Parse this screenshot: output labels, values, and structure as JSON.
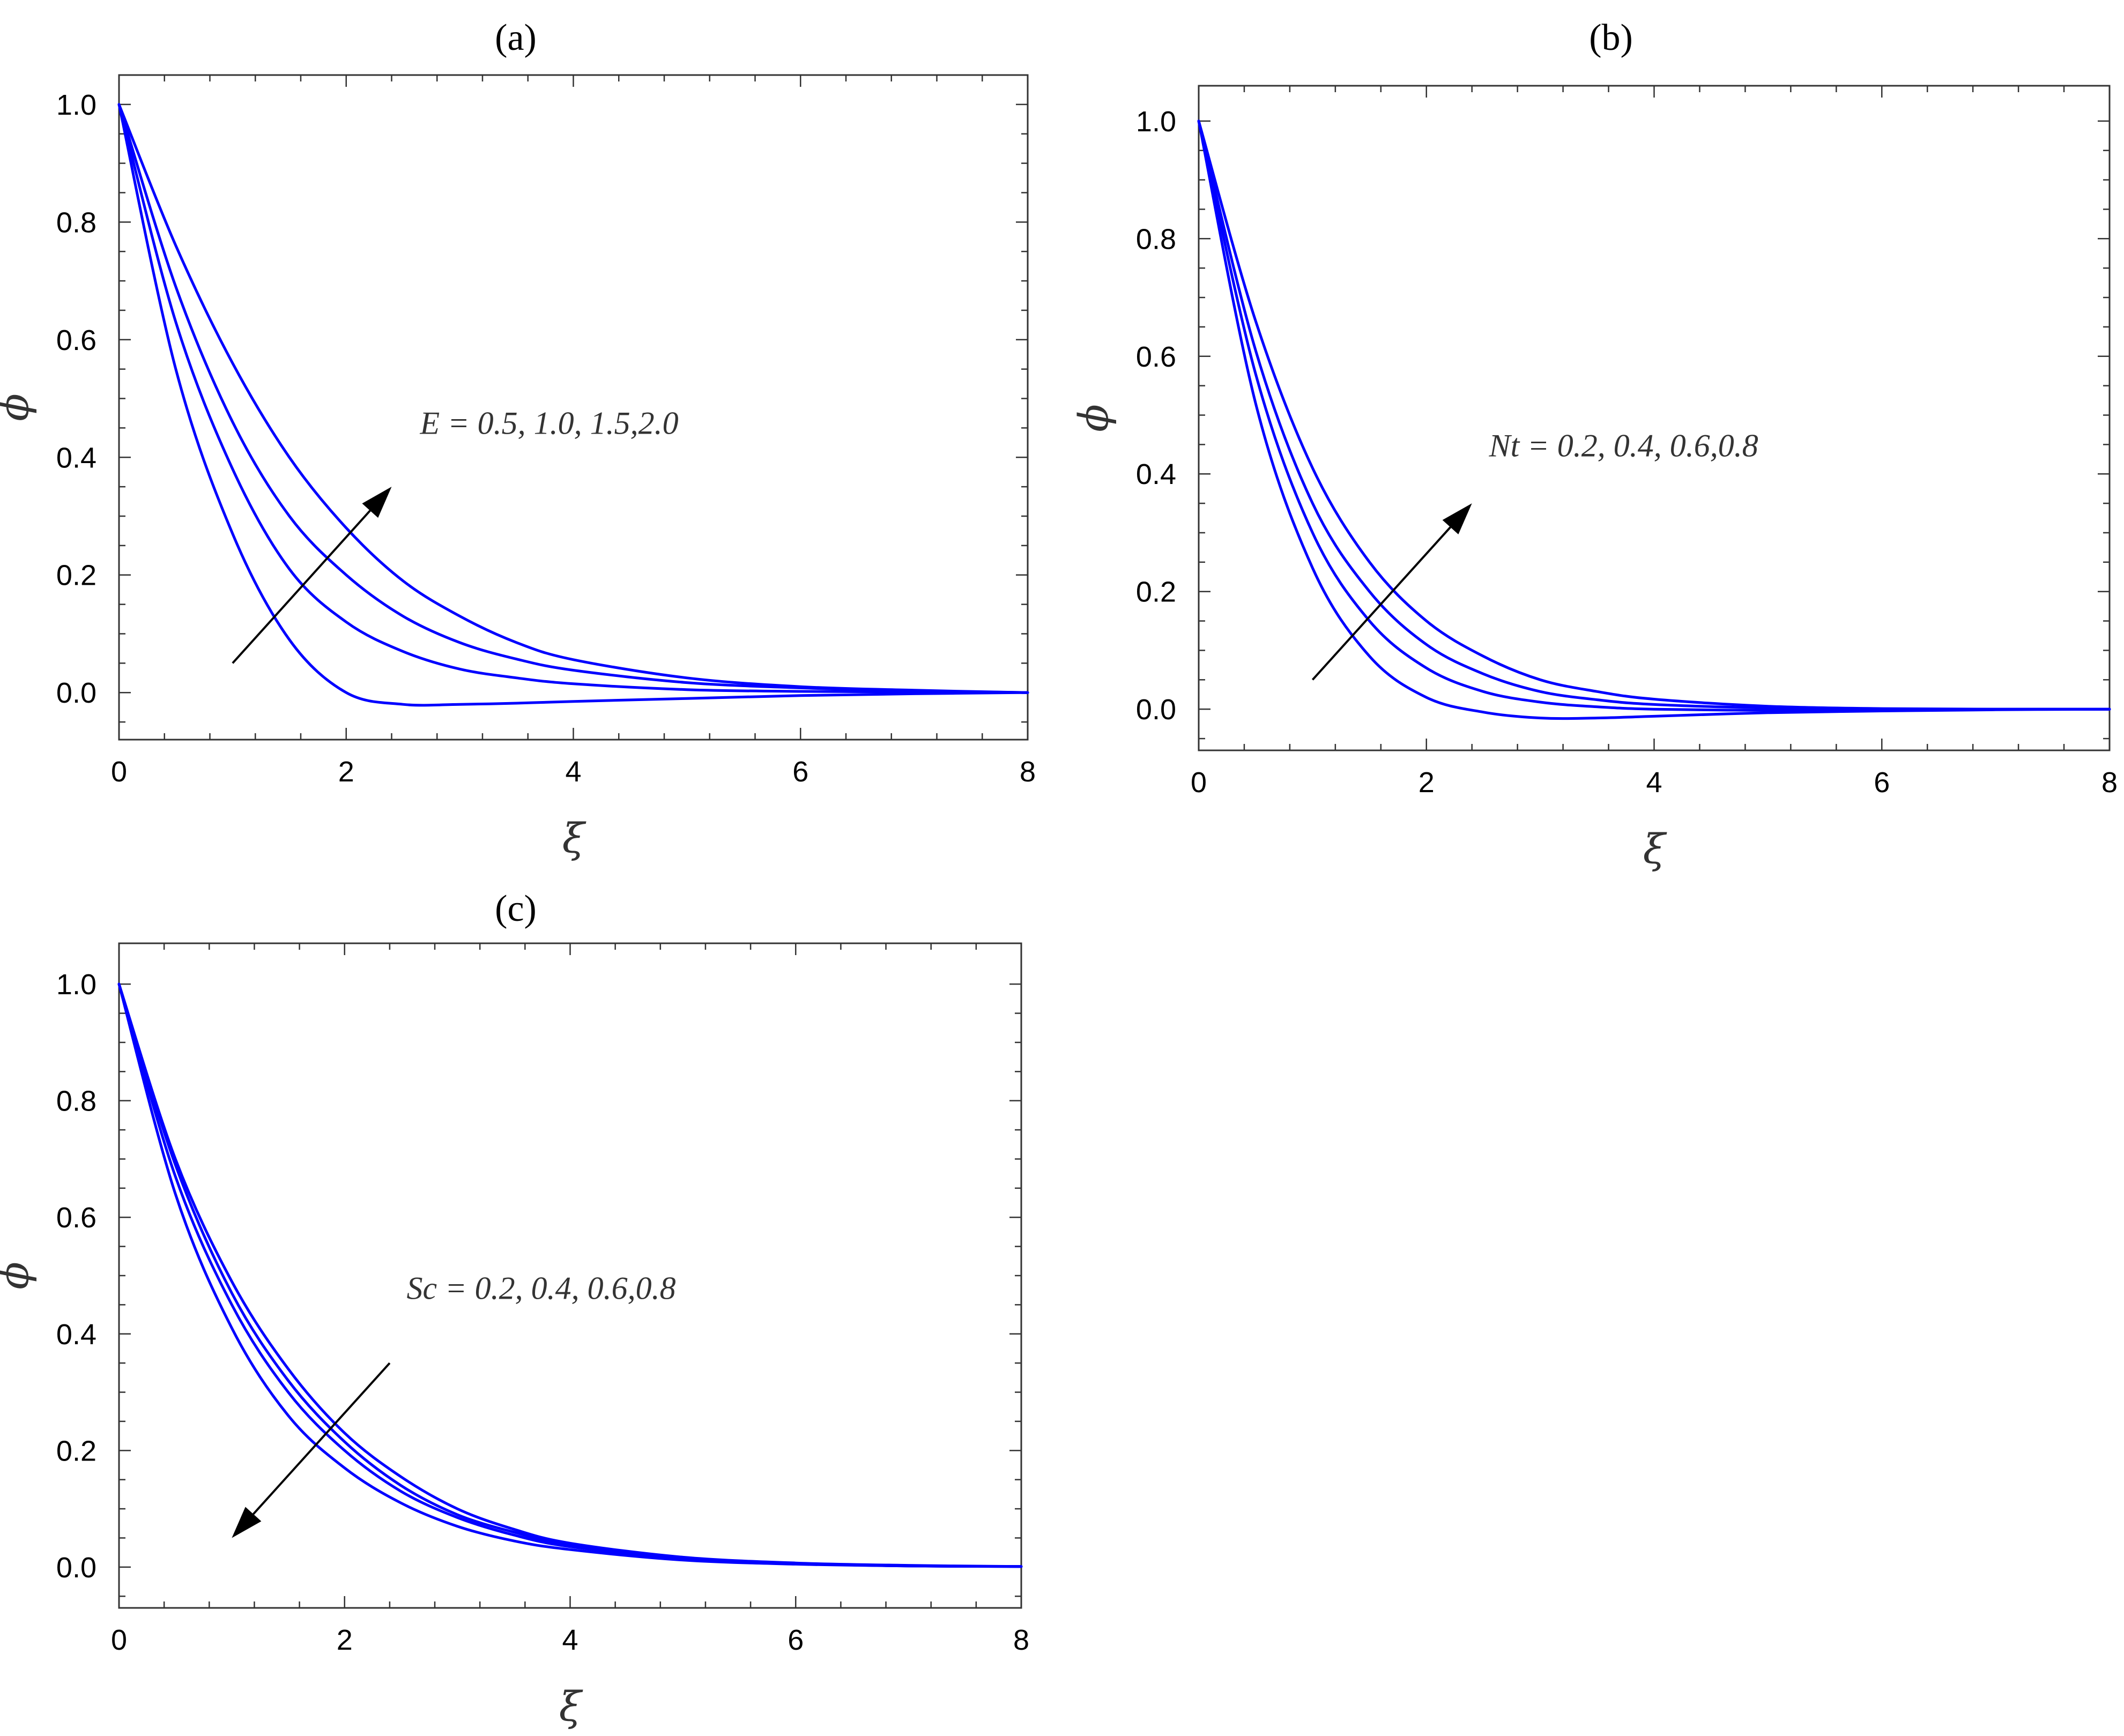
{
  "colors": {
    "series": "#0000ff",
    "arrow": "#000000",
    "frame": "#333333"
  },
  "chart_data": [
    {
      "id": "a",
      "type": "line",
      "panel_label": "(a)",
      "xlabel": "ξ",
      "ylabel": "ϕ",
      "xlim": [
        0,
        8
      ],
      "ylim": [
        -0.08,
        1.05
      ],
      "x_ticks": [
        "0",
        "2",
        "4",
        "6",
        "8"
      ],
      "y_ticks": [
        "0.0",
        "0.2",
        "0.4",
        "0.6",
        "0.8",
        "1.0"
      ],
      "x": [
        0,
        0.5,
        1,
        1.5,
        2,
        2.5,
        3,
        3.5,
        4,
        5,
        6,
        7,
        8
      ],
      "series": [
        {
          "values": [
            1.0,
            0.55,
            0.27,
            0.09,
            0.0,
            -0.02,
            -0.02,
            -0.018,
            -0.015,
            -0.01,
            -0.005,
            -0.002,
            0.0
          ]
        },
        {
          "values": [
            1.0,
            0.63,
            0.38,
            0.21,
            0.12,
            0.07,
            0.04,
            0.025,
            0.015,
            0.005,
            0.002,
            0.001,
            0.0
          ]
        },
        {
          "values": [
            1.0,
            0.69,
            0.46,
            0.3,
            0.2,
            0.13,
            0.085,
            0.057,
            0.038,
            0.017,
            0.008,
            0.003,
            0.0
          ]
        },
        {
          "values": [
            1.0,
            0.76,
            0.56,
            0.4,
            0.28,
            0.19,
            0.13,
            0.085,
            0.056,
            0.025,
            0.01,
            0.004,
            0.0
          ]
        }
      ],
      "annotation": {
        "text": "E = 0.5, 1.0, 1.5,2.0",
        "direction": "increasing",
        "text_at": [
          2.65,
          0.44
        ],
        "arrow_from": [
          1.0,
          0.05
        ],
        "arrow_to": [
          2.4,
          0.35
        ]
      }
    },
    {
      "id": "b",
      "type": "line",
      "panel_label": "(b)",
      "xlabel": "ξ",
      "ylabel": "ϕ",
      "xlim": [
        0,
        8
      ],
      "ylim": [
        -0.07,
        1.06
      ],
      "x_ticks": [
        "0",
        "2",
        "4",
        "6",
        "8"
      ],
      "y_ticks": [
        "0.0",
        "0.2",
        "0.4",
        "0.6",
        "0.8",
        "1.0"
      ],
      "x": [
        0,
        0.5,
        1,
        1.5,
        2,
        2.5,
        3,
        3.5,
        4,
        5,
        6,
        7,
        8
      ],
      "series": [
        {
          "values": [
            1.0,
            0.52,
            0.24,
            0.09,
            0.02,
            -0.005,
            -0.015,
            -0.015,
            -0.012,
            -0.006,
            -0.003,
            -0.001,
            0.0
          ]
        },
        {
          "values": [
            1.0,
            0.57,
            0.3,
            0.15,
            0.07,
            0.03,
            0.012,
            0.004,
            0.0,
            -0.002,
            -0.001,
            0.0,
            0.0
          ]
        },
        {
          "values": [
            1.0,
            0.61,
            0.35,
            0.2,
            0.11,
            0.06,
            0.03,
            0.016,
            0.008,
            0.002,
            0.0,
            0.0,
            0.0
          ]
        },
        {
          "values": [
            1.0,
            0.66,
            0.41,
            0.25,
            0.15,
            0.09,
            0.05,
            0.03,
            0.017,
            0.005,
            0.001,
            0.0,
            0.0
          ]
        }
      ],
      "annotation": {
        "text": "Nt = 0.2, 0.4, 0.6,0.8",
        "direction": "increasing",
        "text_at": [
          2.55,
          0.43
        ],
        "arrow_from": [
          1.0,
          0.05
        ],
        "arrow_to": [
          2.4,
          0.35
        ]
      }
    },
    {
      "id": "c",
      "type": "line",
      "panel_label": "(c)",
      "xlabel": "ξ",
      "ylabel": "ϕ",
      "xlim": [
        0,
        8
      ],
      "ylim": [
        -0.07,
        1.07
      ],
      "x_ticks": [
        "0",
        "2",
        "4",
        "6",
        "8"
      ],
      "y_ticks": [
        "0.0",
        "0.2",
        "0.4",
        "0.6",
        "0.8",
        "1.0"
      ],
      "x": [
        0,
        0.5,
        1,
        1.5,
        2,
        2.5,
        3,
        3.5,
        4,
        5,
        6,
        7,
        8
      ],
      "series": [
        {
          "values": [
            1.0,
            0.64,
            0.41,
            0.26,
            0.17,
            0.11,
            0.07,
            0.045,
            0.03,
            0.012,
            0.005,
            0.002,
            0.001
          ]
        },
        {
          "values": [
            1.0,
            0.67,
            0.45,
            0.3,
            0.2,
            0.13,
            0.085,
            0.055,
            0.035,
            0.015,
            0.006,
            0.002,
            0.001
          ]
        },
        {
          "values": [
            1.0,
            0.69,
            0.47,
            0.32,
            0.215,
            0.14,
            0.09,
            0.06,
            0.038,
            0.016,
            0.006,
            0.002,
            0.001
          ]
        },
        {
          "values": [
            1.0,
            0.7,
            0.49,
            0.34,
            0.23,
            0.155,
            0.1,
            0.065,
            0.041,
            0.017,
            0.007,
            0.003,
            0.001
          ]
        }
      ],
      "annotation": {
        "text": "Sc = 0.2, 0.4, 0.6,0.8",
        "direction": "decreasing",
        "text_at": [
          2.55,
          0.46
        ],
        "arrow_from": [
          2.4,
          0.35
        ],
        "arrow_to": [
          1.0,
          0.05
        ]
      }
    }
  ]
}
